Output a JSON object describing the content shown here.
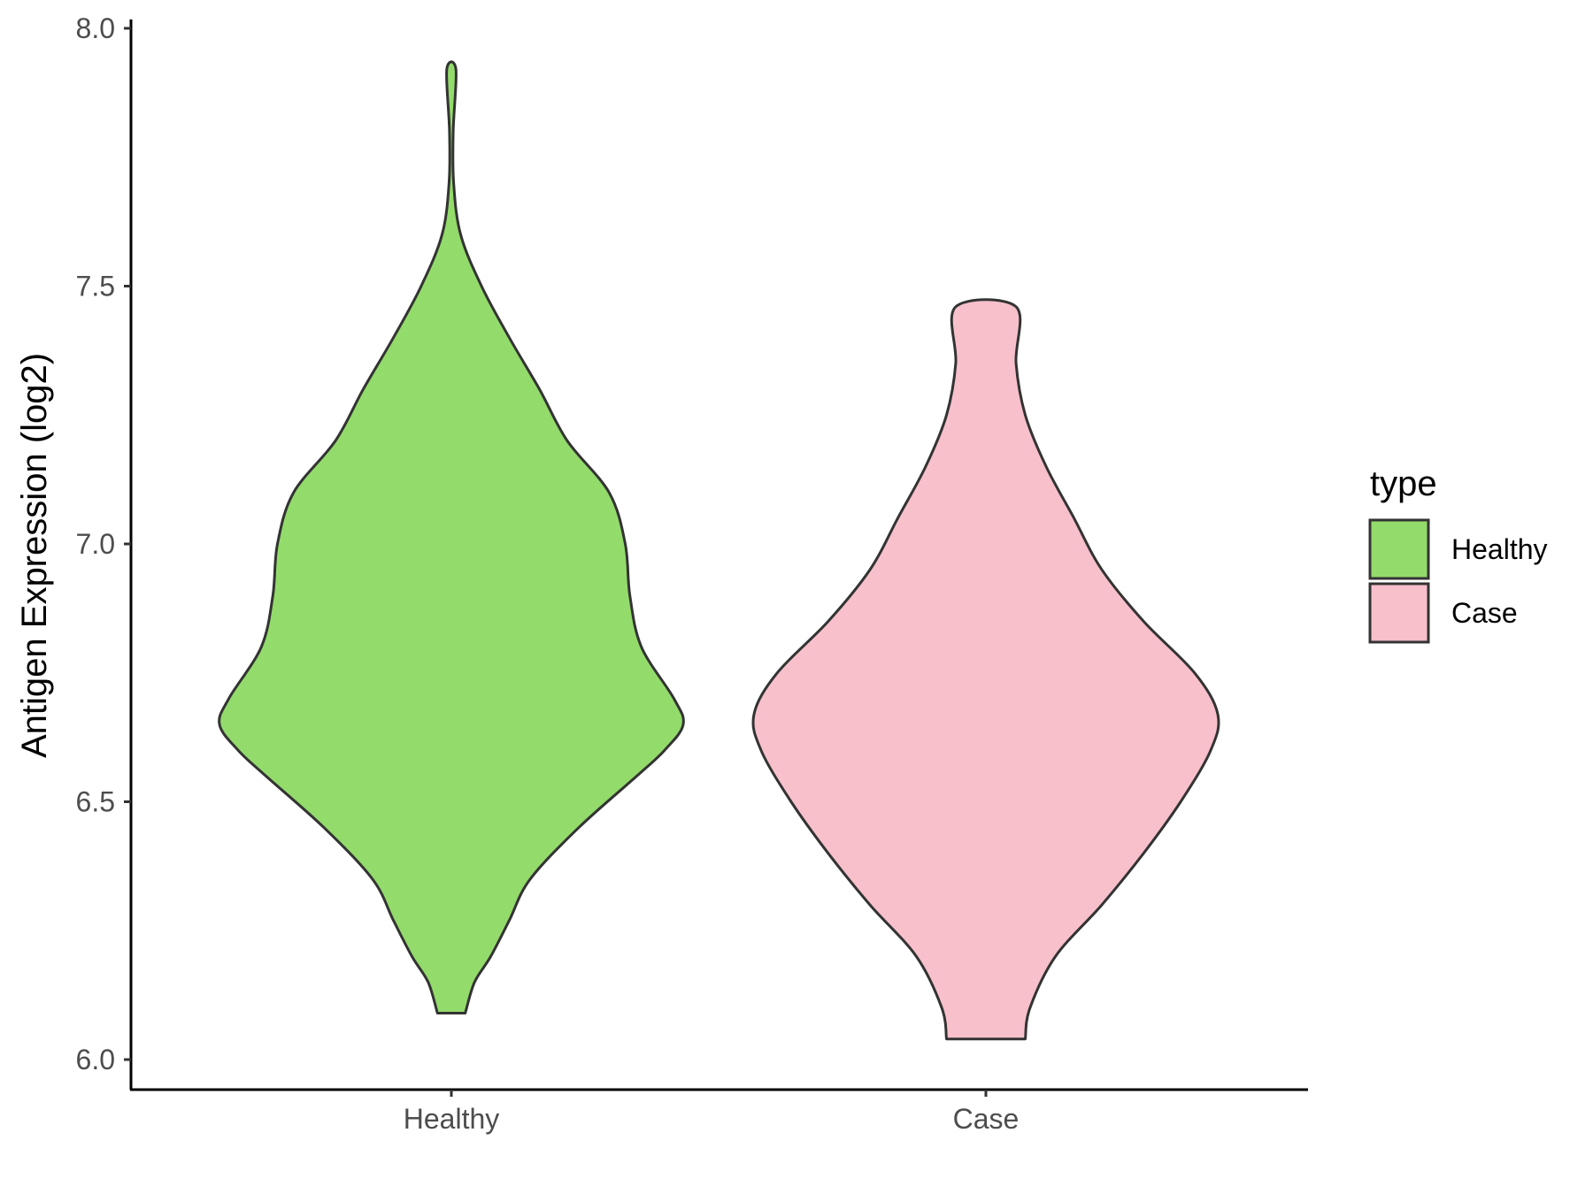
{
  "chart_data": {
    "type": "violin",
    "xlabel": "",
    "ylabel": "Antigen Expression (log2)",
    "ylim": [
      5.95,
      8.02
    ],
    "yticks": [
      "6.0",
      "6.5",
      "7.0",
      "7.5",
      "8.0"
    ],
    "categories": [
      "Healthy",
      "Case"
    ],
    "grid": false,
    "legend": {
      "title": "type",
      "placement": "right",
      "items": [
        {
          "label": "Healthy",
          "color": "#93DB6B"
        },
        {
          "label": "Case",
          "color": "#F7C0CB"
        }
      ]
    },
    "series": [
      {
        "name": "Healthy",
        "color": "#93DB6B",
        "min": 6.09,
        "max": 7.92,
        "density_profile": [
          [
            6.09,
            0.06
          ],
          [
            6.15,
            0.1
          ],
          [
            6.2,
            0.17
          ],
          [
            6.27,
            0.25
          ],
          [
            6.35,
            0.34
          ],
          [
            6.45,
            0.55
          ],
          [
            6.55,
            0.8
          ],
          [
            6.6,
            0.92
          ],
          [
            6.65,
            1.0
          ],
          [
            6.7,
            0.96
          ],
          [
            6.8,
            0.82
          ],
          [
            6.9,
            0.77
          ],
          [
            7.0,
            0.75
          ],
          [
            7.1,
            0.68
          ],
          [
            7.2,
            0.5
          ],
          [
            7.3,
            0.38
          ],
          [
            7.4,
            0.25
          ],
          [
            7.5,
            0.13
          ],
          [
            7.6,
            0.04
          ],
          [
            7.7,
            0.01
          ],
          [
            7.8,
            0.008
          ],
          [
            7.92,
            0.02
          ]
        ]
      },
      {
        "name": "Case",
        "color": "#F7C0CB",
        "min": 6.04,
        "max": 7.46,
        "density_profile": [
          [
            6.04,
            0.17
          ],
          [
            6.1,
            0.19
          ],
          [
            6.2,
            0.3
          ],
          [
            6.3,
            0.5
          ],
          [
            6.4,
            0.68
          ],
          [
            6.5,
            0.84
          ],
          [
            6.6,
            0.97
          ],
          [
            6.67,
            1.0
          ],
          [
            6.75,
            0.9
          ],
          [
            6.85,
            0.68
          ],
          [
            6.95,
            0.5
          ],
          [
            7.05,
            0.38
          ],
          [
            7.15,
            0.26
          ],
          [
            7.25,
            0.17
          ],
          [
            7.35,
            0.13
          ],
          [
            7.46,
            0.13
          ]
        ]
      }
    ]
  }
}
